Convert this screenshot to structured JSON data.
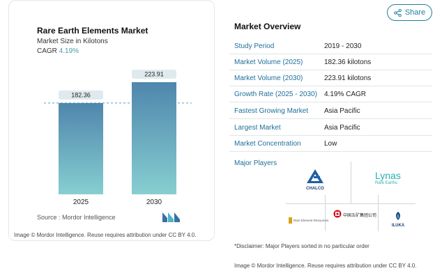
{
  "chart": {
    "title": "Rare Earth Elements Market",
    "subtitle": "Market Size in Kilotons",
    "cagr_label": "CAGR",
    "cagr_value": "4.19%",
    "source": "Source :  Mordor Intelligence",
    "attribution": "Image © Mordor Intelligence. Reuse requires attribution under CC BY 4.0."
  },
  "chart_data": {
    "type": "bar",
    "categories": [
      "2025",
      "2030"
    ],
    "values": [
      182.36,
      223.91
    ],
    "value_labels": [
      "182.36",
      "223.91"
    ],
    "title": "Rare Earth Elements Market",
    "ylabel": "",
    "xlabel": "",
    "ylim": [
      0,
      240
    ],
    "grid": false,
    "colors": {
      "bar_top": "#4f86ad",
      "bar_bottom": "#86cfd0",
      "label_bg": "#dfeaee",
      "dash": "#4aa7c2"
    }
  },
  "share": {
    "label": "Share",
    "icon": "share-icon"
  },
  "overview": {
    "title": "Market Overview",
    "rows": [
      {
        "label": "Study Period",
        "value": "2019 - 2030"
      },
      {
        "label": "Market Volume (2025)",
        "value": "182.36 kilotons"
      },
      {
        "label": "Market Volume (2030)",
        "value": "223.91 kilotons"
      },
      {
        "label": "Growth Rate (2025 - 2030)",
        "value": "4.19% CAGR"
      },
      {
        "label": "Fastest Growing Market",
        "value": "Asia Pacific"
      },
      {
        "label": "Largest Market",
        "value": "Asia Pacific"
      },
      {
        "label": "Market Concentration",
        "value": "Low"
      }
    ]
  },
  "players": {
    "label": "Major Players",
    "logos": {
      "chalco": "CHALCO",
      "lynas": "Lynas",
      "lynas_sub": "Rare Earths",
      "rare_element": "Rare Element Resources",
      "chinese_co": "中国五矿集团公司",
      "iluka": "ILUKA"
    }
  },
  "disclaimer": "*Disclaimer: Major Players sorted in no particular order",
  "attribution_right": "Image © Mordor Intelligence. Reuse requires attribution under CC BY 4.0."
}
